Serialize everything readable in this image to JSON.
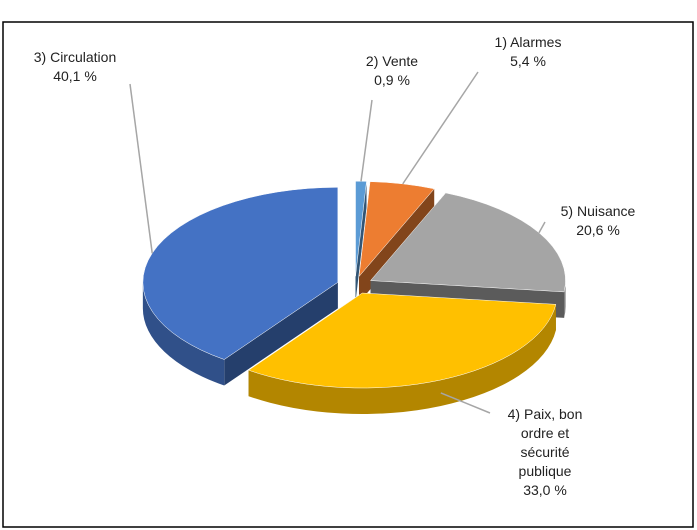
{
  "chart_data": {
    "type": "pie3d",
    "categories": [
      "2) Vente",
      "1) Alarmes",
      "5) Nuisance",
      "4) Paix, bon ordre et sécurité publique",
      "3) Circulation"
    ],
    "values": [
      0.9,
      5.4,
      20.6,
      33.0,
      40.1
    ],
    "value_labels": [
      "0,9 %",
      "5,4 %",
      "20,6 %",
      "33,0 %",
      "40,1 %"
    ],
    "colors": [
      "#5b9bd5",
      "#ed7d31",
      "#a5a5a5",
      "#ffc000",
      "#4472c4"
    ]
  }
}
